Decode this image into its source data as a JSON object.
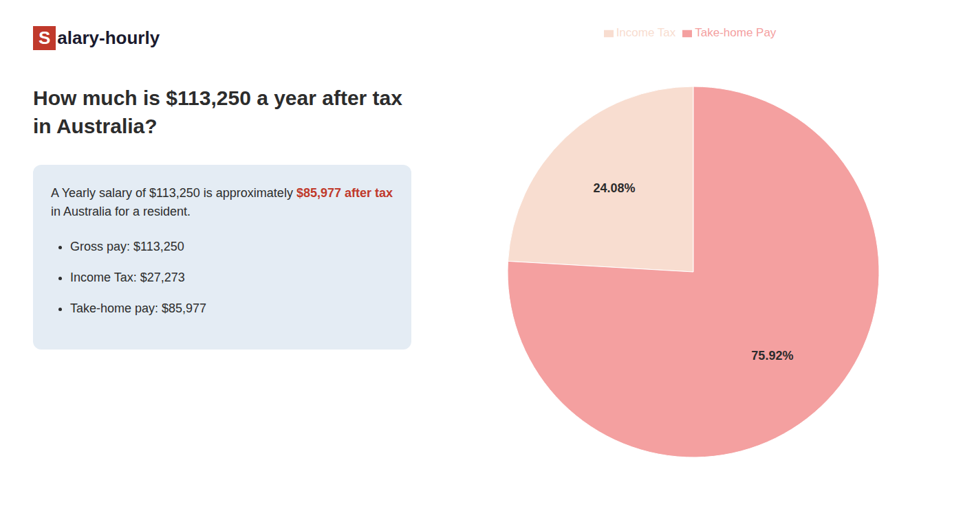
{
  "chart_data": {
    "type": "pie",
    "title": "How much is $113,250 a year after tax in Australia?",
    "categories": [
      "Income Tax",
      "Take-home Pay"
    ],
    "values": [
      24.08,
      75.92
    ],
    "value_labels": [
      "24.08%",
      "75.92%"
    ],
    "colors": [
      "#f8ddd0",
      "#f4a0a0"
    ],
    "data_labels": true,
    "legend": "top",
    "annotations": [
      {
        "text": "S",
        "color": "#ffffff",
        "background": "#c0392b"
      },
      {
        "text": "alary-hourly"
      },
      {
        "text": "A Yearly salary of $113,250 is approximately "
      },
      {
        "text": "$85,977 after tax",
        "color": "#c0392b"
      },
      {
        "text": "in Australia for a resident."
      },
      {
        "text": "Gross pay: $113,250"
      },
      {
        "text": "Income Tax: $27,273"
      },
      {
        "text": "Take-home pay: $85,977"
      }
    ]
  }
}
